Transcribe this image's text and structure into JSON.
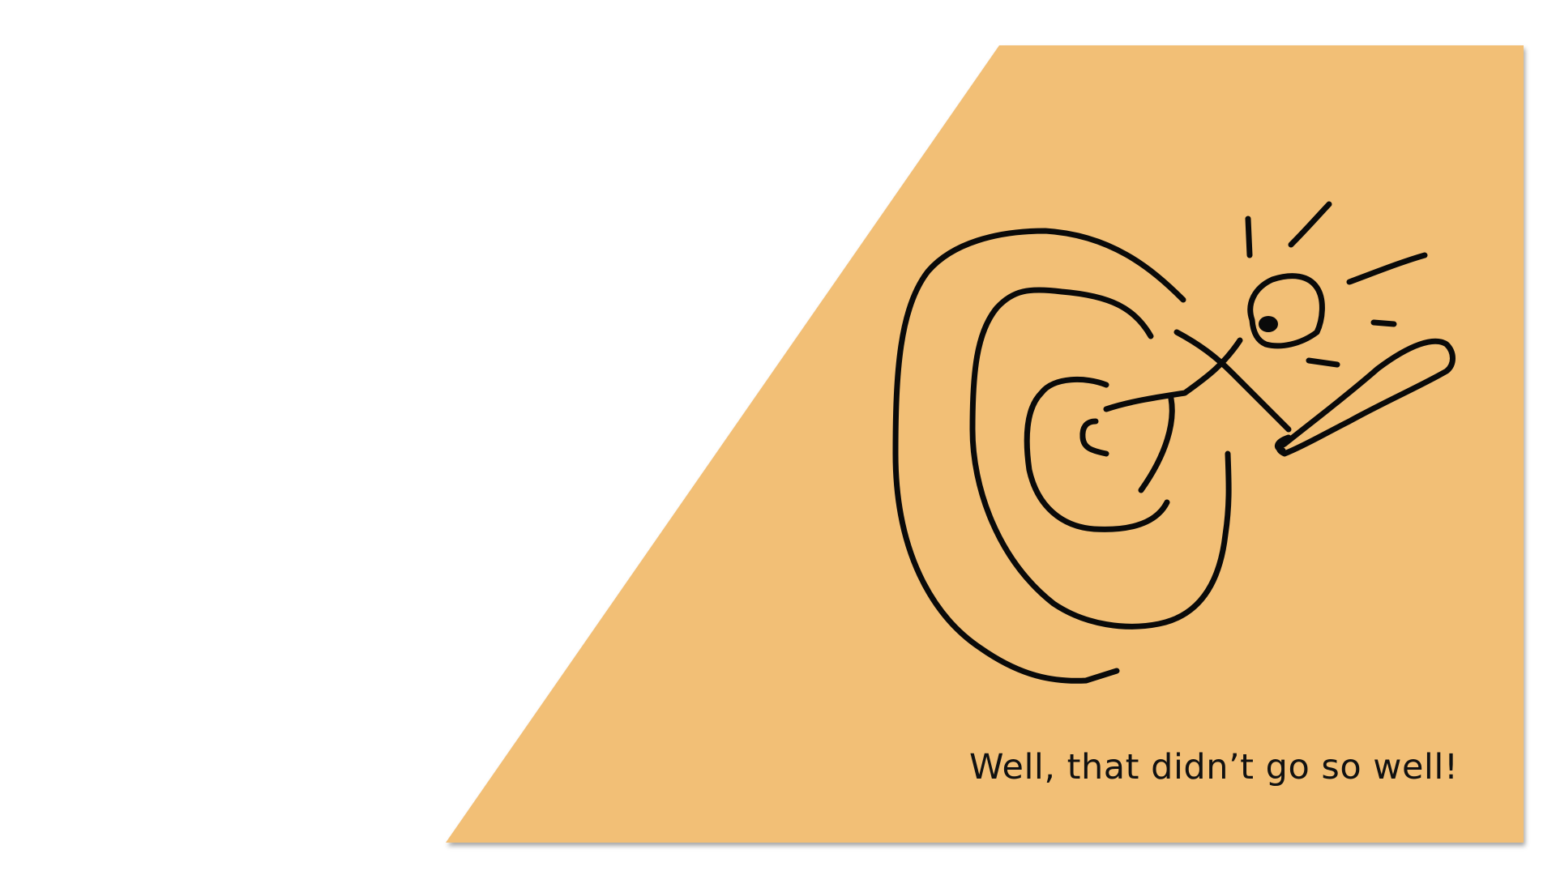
{
  "slide": {
    "caption": "Well, that didn’t go so well!",
    "panel_color": "#F2BF76",
    "ink_color": "#0a0a0a",
    "background_color": "#ffffff"
  },
  "illustration": {
    "subject": "target-with-arrow-missing-bullseye",
    "icon": "target-icon"
  }
}
